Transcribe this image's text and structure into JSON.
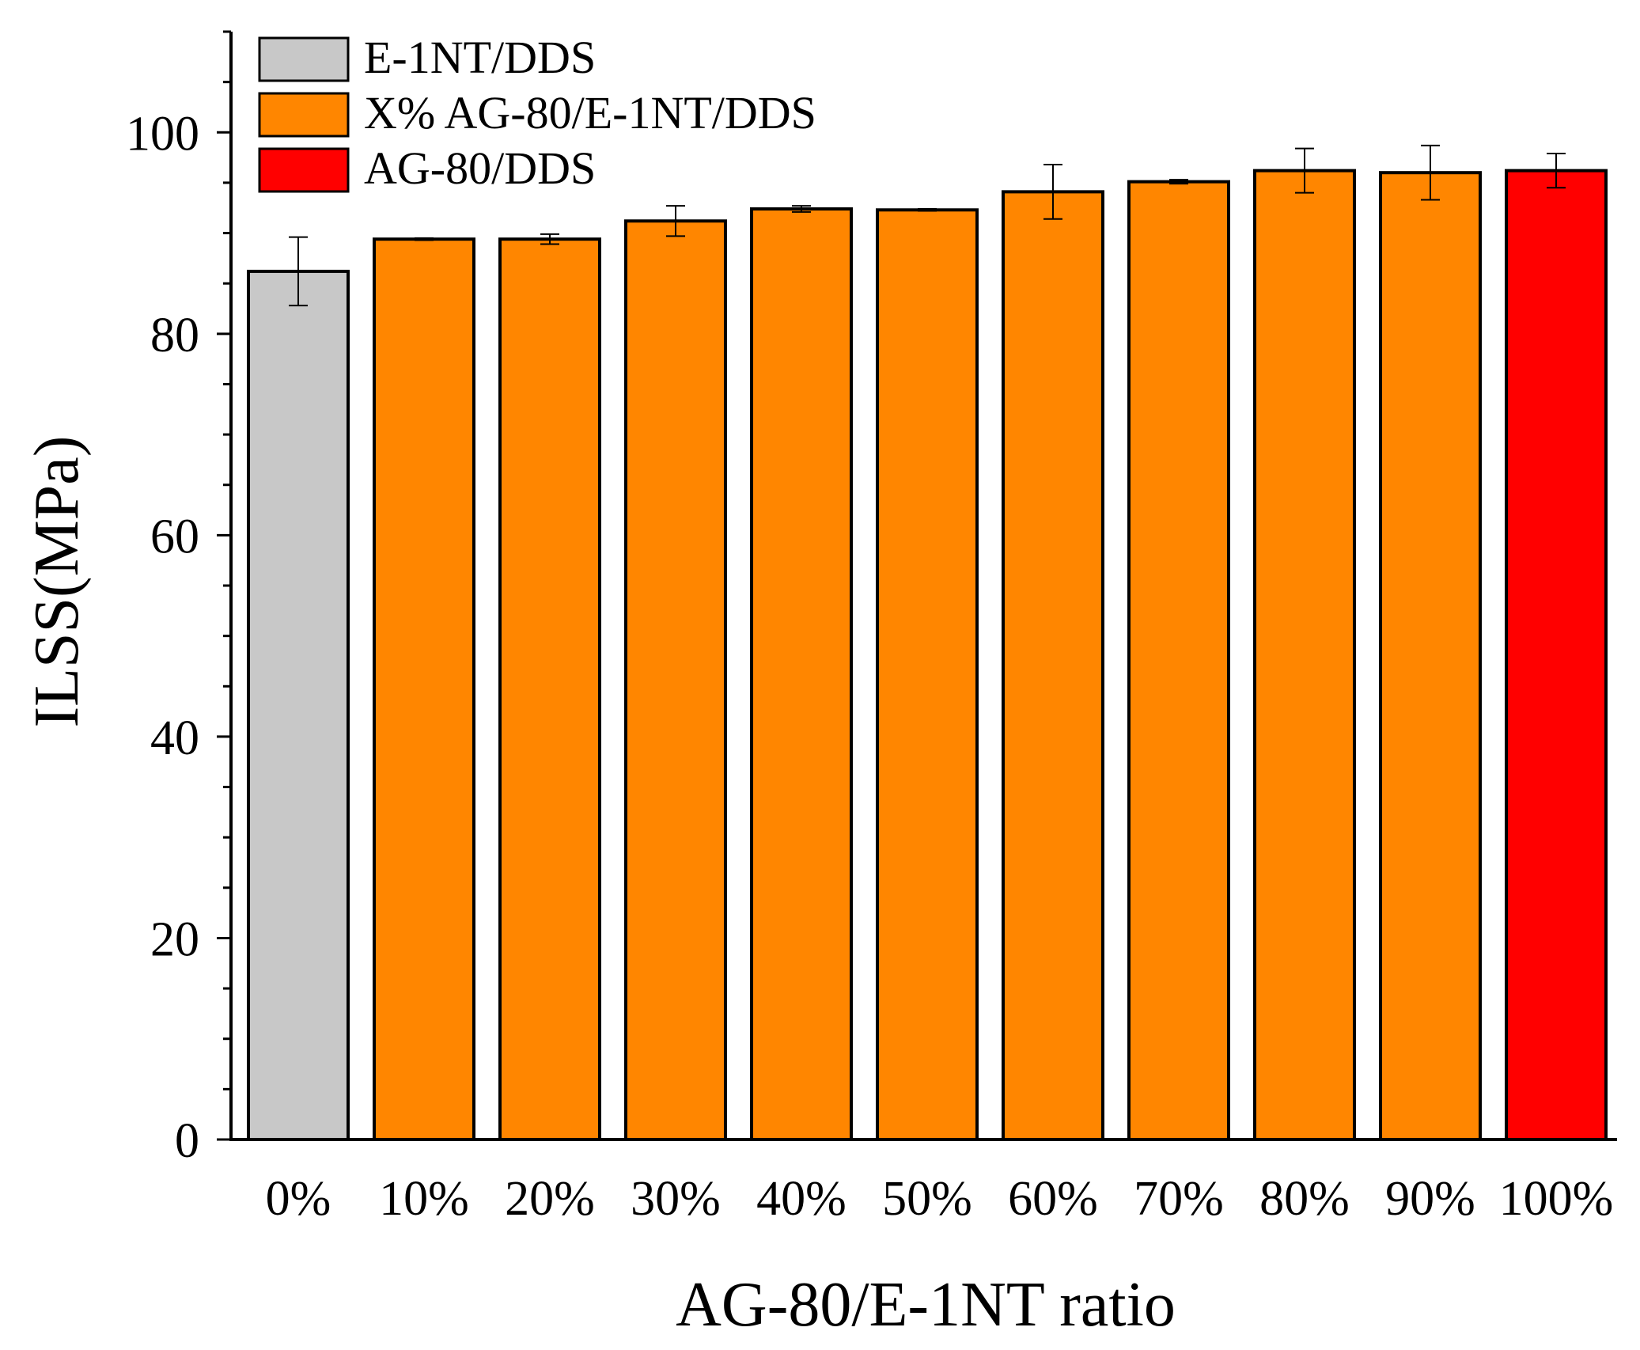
{
  "chart_data": {
    "type": "bar",
    "xlabel": "AG-80/E-1NT ratio",
    "ylabel": "ILSS(MPa)",
    "ylim": [
      0,
      110
    ],
    "yticks": [
      0,
      20,
      40,
      60,
      80,
      100
    ],
    "grid": false,
    "legend_position": "top-left",
    "categories": [
      "0%",
      "10%",
      "20%",
      "30%",
      "40%",
      "50%",
      "60%",
      "70%",
      "80%",
      "90%",
      "100%"
    ],
    "values": [
      86.2,
      89.4,
      89.4,
      91.2,
      92.4,
      92.3,
      94.1,
      95.1,
      96.2,
      96.0,
      96.2
    ],
    "errors": [
      3.4,
      0.1,
      0.5,
      1.5,
      0.3,
      0.1,
      2.7,
      0.2,
      2.2,
      2.7,
      1.7
    ],
    "bar_series": [
      0,
      1,
      1,
      1,
      1,
      1,
      1,
      1,
      1,
      1,
      2
    ],
    "series": [
      {
        "name": "E-1NT/DDS",
        "color": "#c8c8c8"
      },
      {
        "name": "X% AG-80/E-1NT/DDS",
        "color": "#ff8600"
      },
      {
        "name": "AG-80/DDS",
        "color": "#ff0000"
      }
    ]
  }
}
